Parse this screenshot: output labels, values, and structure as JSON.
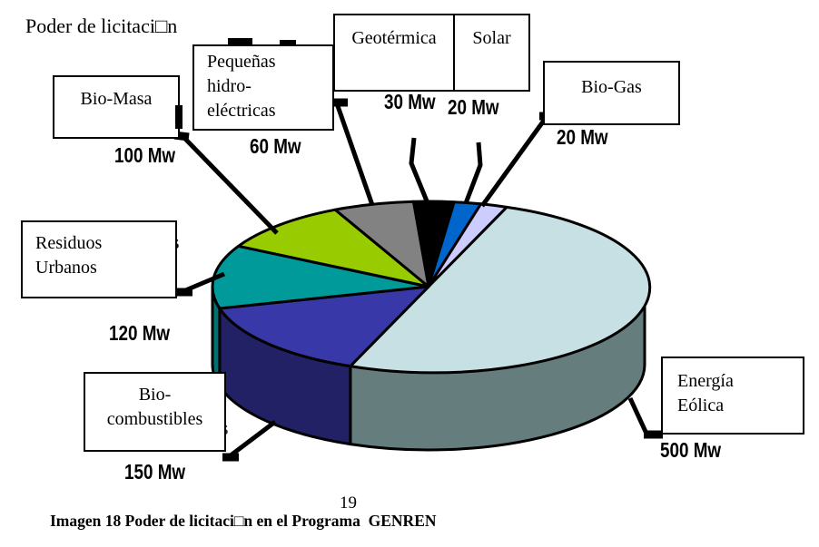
{
  "page": {
    "title": "Poder de licitaci□n",
    "page_number": "19",
    "caption": "Imagen 18 Poder de licitaci□n en el Programa  GENREN"
  },
  "chart_data": {
    "type": "pie",
    "title": "Poder de licitaci□n",
    "unit": "Mw",
    "total": 1000,
    "style": "3d-pie",
    "start_angle_deg": -4,
    "direction": "clockwise",
    "legend_position": "callout-boxes",
    "slices": [
      {
        "label": "Geotérmica",
        "value": 30,
        "value_label": "30 Mw",
        "color": "#000000",
        "side_color": "#000000"
      },
      {
        "label": "Solar",
        "value": 20,
        "value_label": "20 Mw",
        "color": "#0066cc",
        "side_color": "#004c99"
      },
      {
        "label": "Bio-Gas",
        "value": 20,
        "value_label": "20 Mw",
        "color": "#ccccff",
        "side_color": "#9999cc"
      },
      {
        "label": "Energía Eólica",
        "value": 500,
        "value_label": "500 Mw",
        "color": "#c7e0e4",
        "side_color": "#667d7d"
      },
      {
        "label": "Bio-combustibles",
        "value": 150,
        "value_label": "150 Mw",
        "color": "#3838a8",
        "side_color": "#232166"
      },
      {
        "label": "Residuos Urbanos",
        "value": 120,
        "value_label": "120 Mw",
        "color": "#009a9a",
        "side_color": "#007272"
      },
      {
        "label": "Bio-Masa",
        "value": 100,
        "value_label": "100 Mw",
        "color": "#99cc00",
        "side_color": "#6b8f00"
      },
      {
        "label": "Pequeñas hidro-eléctricas",
        "value": 60,
        "value_label": "60 Mw",
        "color": "#828282",
        "side_color": "#5a5a5a"
      }
    ]
  },
  "callouts": [
    {
      "id": "bio-masa",
      "lines": [
        "Bio-Masa"
      ],
      "value": "100 Mw"
    },
    {
      "id": "pequenas-hidro",
      "lines": [
        "Pequeñas",
        "hidro-",
        "eléctricas"
      ],
      "value": "60 Mw"
    },
    {
      "id": "geotermica",
      "lines": [
        "Geotérmica"
      ],
      "value": "30 Mw"
    },
    {
      "id": "solar",
      "lines": [
        "Solar"
      ],
      "value": "20 Mw"
    },
    {
      "id": "bio-gas",
      "lines": [
        "Bio-Gas"
      ],
      "value": "20 Mw"
    },
    {
      "id": "residuos-urbanos",
      "lines": [
        "Residuos",
        "Urbanos"
      ],
      "value": "120 Mw"
    },
    {
      "id": "bio-combustibles",
      "lines": [
        "Bio-",
        "combustibles"
      ],
      "value": "150 Mw"
    },
    {
      "id": "energia-eolica",
      "lines": [
        "Energía",
        "Eólica"
      ],
      "value": "500 Mw"
    }
  ],
  "fragments": {
    "residuos_tail": "s",
    "biocombustibles_tail": "s"
  },
  "colors": {
    "outline": "#000000",
    "leader_line": "#000000",
    "box_background": "#ffffff"
  }
}
